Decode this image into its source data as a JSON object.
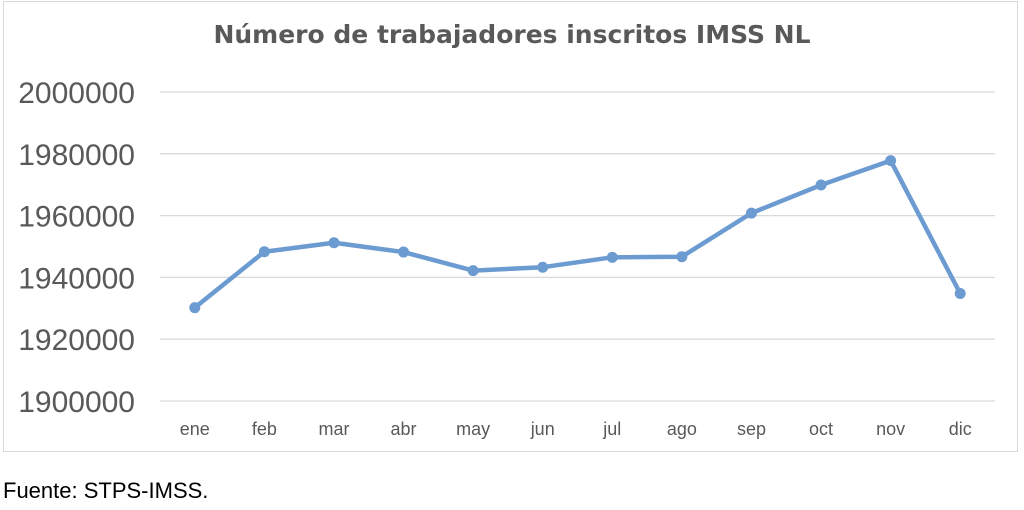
{
  "chart_data": {
    "type": "line",
    "title": "Número de trabajadores inscritos IMSS NL",
    "xlabel": "",
    "ylabel": "",
    "categories": [
      "ene",
      "feb",
      "mar",
      "abr",
      "may",
      "jun",
      "jul",
      "ago",
      "sep",
      "oct",
      "nov",
      "dic"
    ],
    "series": [
      {
        "values": [
          1930200,
          1948300,
          1951200,
          1948200,
          1942200,
          1943300,
          1946500,
          1946700,
          1960800,
          1969900,
          1977800,
          1934800
        ]
      }
    ],
    "ylim": [
      1900000,
      2000000
    ],
    "yticks": [
      "2000000",
      "1980000",
      "1960000",
      "1940000",
      "1920000",
      "1900000"
    ],
    "grid": true,
    "legend": "none",
    "colors": {
      "line": "#6b9bd1",
      "grid": "#d9d9d9",
      "tick_text": "#595959"
    }
  },
  "source_note": "Fuente: STPS-IMSS."
}
